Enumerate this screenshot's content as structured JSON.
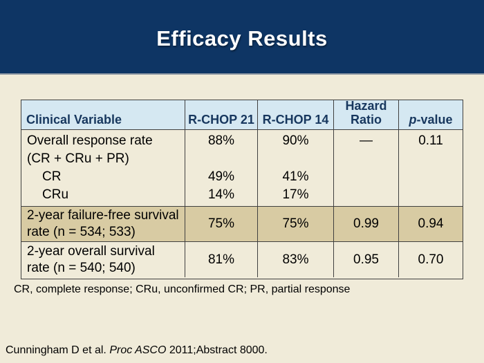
{
  "title": "Efficacy Results",
  "table": {
    "header": {
      "clinical_variable": "Clinical Variable",
      "rchop21": "R-CHOP 21",
      "rchop14": "R-CHOP 14",
      "hazard_ratio": "Hazard Ratio",
      "p_italic": "p",
      "p_rest": "-value"
    },
    "rows": {
      "orr": {
        "label_line1": "Overall response rate",
        "label_line2": "(CR + CRu + PR)",
        "label_line3": "CR",
        "label_line4": "CRu",
        "rchop21_line1": "88%",
        "rchop14_line1": "90%",
        "hr_line1": "—",
        "p_line1": "0.11",
        "rchop21_line3": "49%",
        "rchop14_line3": "41%",
        "rchop21_line4": "14%",
        "rchop14_line4": "17%"
      },
      "ffs": {
        "label_line1": "2-year failure-free survival",
        "label_line2": "rate (n = 534; 533)",
        "rchop21": "75%",
        "rchop14": "75%",
        "hr": "0.99",
        "p": "0.94"
      },
      "os": {
        "label_line1": "2-year overall survival",
        "label_line2": "rate (n = 540; 540)",
        "rchop21": "81%",
        "rchop14": "83%",
        "hr": "0.95",
        "p": "0.70"
      }
    }
  },
  "footnote": "CR, complete response; CRu, unconfirmed CR; PR, partial response",
  "citation": {
    "prefix": "Cunningham D et al. ",
    "italic": "Proc ASCO",
    "suffix": " 2011;Abstract 8000."
  },
  "colors": {
    "band_navy": "#0e3564",
    "background_cream": "#f0ebd9",
    "header_blue": "#d5e8f2",
    "row_tan": "#d8cba3",
    "header_text_navy": "#17375e",
    "border_gray": "#3f3f3f"
  }
}
